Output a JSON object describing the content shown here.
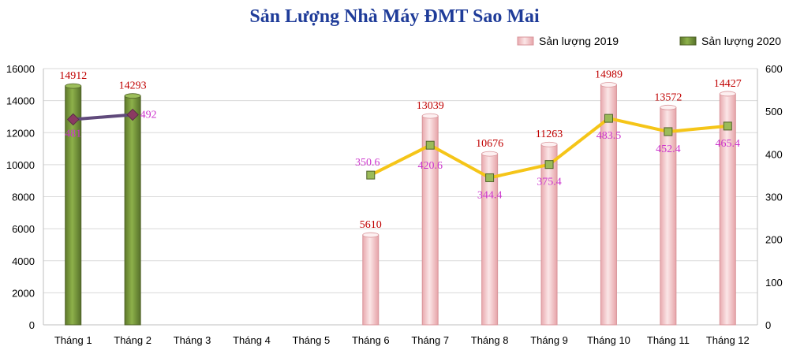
{
  "chart_data": {
    "type": "bar",
    "title": "Sản Lượng Nhà Máy ĐMT Sao Mai",
    "categories": [
      "Tháng 1",
      "Tháng 2",
      "Tháng 3",
      "Tháng 4",
      "Tháng 5",
      "Tháng 6",
      "Tháng 7",
      "Tháng 8",
      "Tháng 9",
      "Tháng 10",
      "Tháng 11",
      "Tháng 12"
    ],
    "y_left": {
      "ylim": [
        0,
        16000
      ],
      "ticks": [
        "0",
        "2000",
        "4000",
        "6000",
        "8000",
        "10000",
        "12000",
        "14000",
        "16000"
      ]
    },
    "y_right": {
      "ylim": [
        0,
        600
      ],
      "ticks": [
        "0",
        "100",
        "200",
        "300",
        "400",
        "500",
        "600"
      ]
    },
    "grid": true,
    "legend_position": "top-right",
    "bar_series": [
      {
        "name": "Sản lượng 2019",
        "color": "#f6d2d4",
        "values": [
          null,
          null,
          null,
          null,
          null,
          5610,
          13039,
          10676,
          11263,
          14989,
          13572,
          14427
        ],
        "labels": [
          "",
          "",
          "",
          "",
          "",
          "5610",
          "13039",
          "10676",
          "11263",
          "14989",
          "13572",
          "14427"
        ]
      },
      {
        "name": "Sản lượng 2020",
        "color": "#76923c",
        "values": [
          14912,
          14293,
          null,
          null,
          null,
          null,
          null,
          null,
          null,
          null,
          null,
          null
        ],
        "labels": [
          "14912",
          "14293",
          "",
          "",
          "",
          "",
          "",
          "",
          "",
          "",
          "",
          ""
        ]
      }
    ],
    "line_series": [
      {
        "axis": "right",
        "color": "#f5c518",
        "marker_color": "#9bbb59",
        "values": [
          null,
          null,
          null,
          null,
          null,
          350.6,
          420.6,
          344.4,
          375.4,
          483.5,
          452.4,
          465.4
        ],
        "labels": [
          "",
          "",
          "",
          "",
          "",
          "350.6",
          "420.6",
          "344.4",
          "375.4",
          "483.5",
          "452.4",
          "465.4"
        ]
      },
      {
        "axis": "right",
        "color": "#604a7b",
        "marker_color": "#8b3a62",
        "values": [
          481,
          492,
          null,
          null,
          null,
          null,
          null,
          null,
          null,
          null,
          null,
          null
        ],
        "labels": [
          "481",
          "492",
          "",
          "",
          "",
          "",
          "",
          "",
          "",
          "",
          "",
          ""
        ]
      }
    ],
    "colors": {
      "title": "#1f3c99",
      "bar_label": "#c00000",
      "line_label": "#cc33cc",
      "axis_text": "#000000",
      "grid": "#d9d9d9"
    }
  }
}
